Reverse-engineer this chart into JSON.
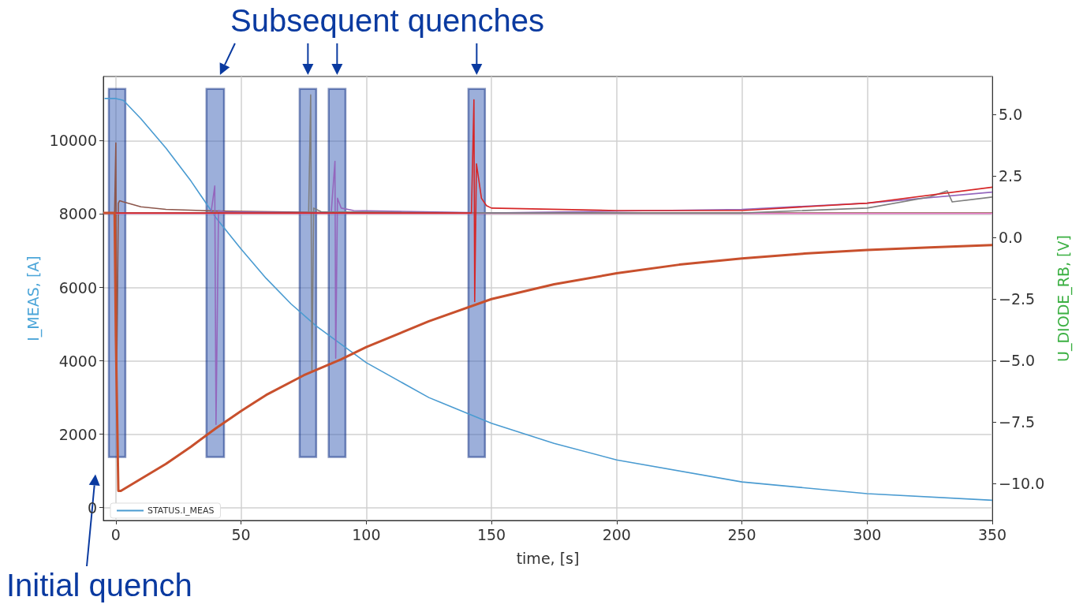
{
  "chart_data": {
    "type": "line",
    "xlabel": "time, [s]",
    "ylabel": "I_MEAS, [A]",
    "y2label": "U_DIODE_RB, [V]",
    "annotations": [
      "Subsequent quenches",
      "Initial quench"
    ],
    "xlim": [
      -5,
      350
    ],
    "xticks": [
      0,
      50,
      100,
      150,
      200,
      250,
      300,
      350
    ],
    "ylim": [
      -350,
      11750
    ],
    "yticks": [
      0,
      2000,
      4000,
      6000,
      8000,
      10000
    ],
    "y2lim": [
      -11.5,
      6.55
    ],
    "y2ticks": [
      {
        "value": -10,
        "label": "−10.0"
      },
      {
        "value": -7.5,
        "label": "−7.5"
      },
      {
        "value": -5,
        "label": "−5.0"
      },
      {
        "value": -2.5,
        "label": "−2.5"
      },
      {
        "value": 0,
        "label": "0.0"
      },
      {
        "value": 2.5,
        "label": "2.5"
      },
      {
        "value": 5,
        "label": "5.0"
      }
    ],
    "grid": true,
    "legend": "bottom left",
    "marker": "none",
    "line_style": "solid",
    "bands": [
      {
        "axis": "x",
        "from": -2.8,
        "to": 3.8,
        "color": "#3a5fb5"
      },
      {
        "axis": "x",
        "from": 36.2,
        "to": 43.2,
        "color": "#3a5fb5"
      },
      {
        "axis": "x",
        "from": 73.4,
        "to": 80,
        "color": "#3a5fb5"
      },
      {
        "axis": "x",
        "from": 85,
        "to": 91.7,
        "color": "#3a5fb5"
      },
      {
        "axis": "x",
        "from": 140.8,
        "to": 147.4,
        "color": "#3a5fb5"
      }
    ],
    "series": [
      {
        "name": "STATUS.I_MEAS",
        "color": "#4a9bd1",
        "x": [
          -4.5,
          0,
          3,
          10,
          20,
          30,
          40,
          50,
          60,
          70,
          80,
          100,
          125,
          150,
          175,
          200,
          250,
          300,
          350
        ],
        "values": [
          11150,
          11150,
          11100,
          10600,
          9800,
          8900,
          7900,
          7050,
          6250,
          5550,
          4950,
          3950,
          3000,
          2300,
          1750,
          1300,
          700,
          380,
          200
        ]
      },
      {
        "color": "#8c564b",
        "axis": "y2",
        "x": [
          -5,
          -0.5,
          0,
          0.3,
          0.6,
          1,
          1.5,
          3,
          10,
          20,
          40,
          80,
          150,
          250,
          350
        ],
        "values": [
          1.0,
          1.0,
          3.85,
          -5.6,
          -3.0,
          1.4,
          1.5,
          1.45,
          1.25,
          1.15,
          1.08,
          1.03,
          1.0,
          1.0,
          1.0
        ]
      },
      {
        "color": "#e377c2",
        "axis": "y2",
        "x": [
          -5,
          350
        ],
        "values": [
          0.98,
          0.98
        ]
      },
      {
        "color": "#9467bd",
        "axis": "y2",
        "x": [
          -5,
          38,
          39.5,
          40,
          41,
          43,
          86,
          87.5,
          87.8,
          88.5,
          90,
          95,
          150,
          250,
          300,
          350
        ],
        "values": [
          1.0,
          1.0,
          2.1,
          -7.6,
          1.1,
          1.05,
          1.0,
          3.1,
          -4.9,
          1.6,
          1.2,
          1.1,
          1.0,
          1.15,
          1.4,
          1.85
        ]
      },
      {
        "color": "#7f7f7f",
        "axis": "y2",
        "x": [
          -5,
          77,
          77.8,
          78.3,
          79,
          82,
          150,
          250,
          300,
          325,
          332,
          334,
          350
        ],
        "values": [
          1.0,
          1.0,
          5.8,
          -5.4,
          1.2,
          1.05,
          1.0,
          1.0,
          1.2,
          1.65,
          1.9,
          1.45,
          1.65
        ]
      },
      {
        "color": "#d62728",
        "axis": "y2",
        "x": [
          -5,
          142,
          143,
          143.3,
          144,
          146,
          148,
          150,
          200,
          250,
          300,
          350
        ],
        "values": [
          1.0,
          1.0,
          5.6,
          -2.6,
          3.0,
          1.6,
          1.3,
          1.2,
          1.1,
          1.1,
          1.4,
          2.05
        ]
      },
      {
        "color": "#c8502d",
        "axis": "y2",
        "x": [
          -5,
          -0.5,
          0,
          1,
          2,
          20,
          30,
          40,
          50,
          60,
          75,
          90,
          100,
          125,
          150,
          175,
          200,
          225,
          250,
          275,
          300,
          325,
          350
        ],
        "values": [
          1.0,
          1.0,
          -4,
          -10.3,
          -10.3,
          -9.2,
          -8.5,
          -7.75,
          -7.05,
          -6.4,
          -5.6,
          -4.95,
          -4.45,
          -3.4,
          -2.5,
          -1.9,
          -1.45,
          -1.1,
          -0.85,
          -0.65,
          -0.5,
          -0.4,
          -0.3
        ]
      }
    ]
  }
}
